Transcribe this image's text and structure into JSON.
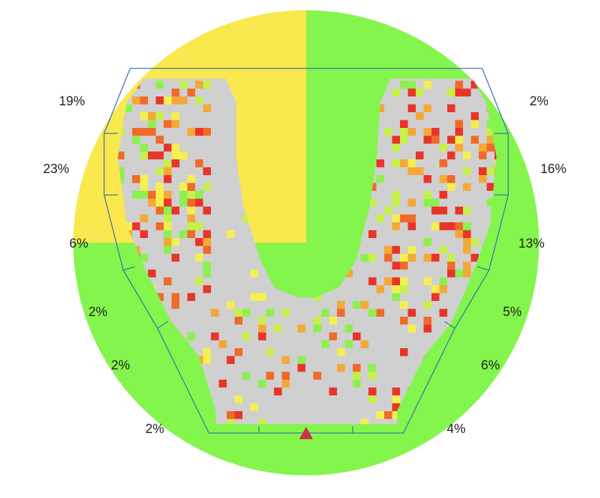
{
  "sectors": [
    {
      "label": "19%"
    },
    {
      "label": "23%"
    },
    {
      "label": "6%"
    },
    {
      "label": "2%"
    },
    {
      "label": "2%"
    },
    {
      "label": "2%"
    },
    {
      "label": "4%"
    },
    {
      "label": "6%"
    },
    {
      "label": "5%"
    },
    {
      "label": "13%"
    },
    {
      "label": "16%"
    },
    {
      "label": "2%"
    }
  ]
}
